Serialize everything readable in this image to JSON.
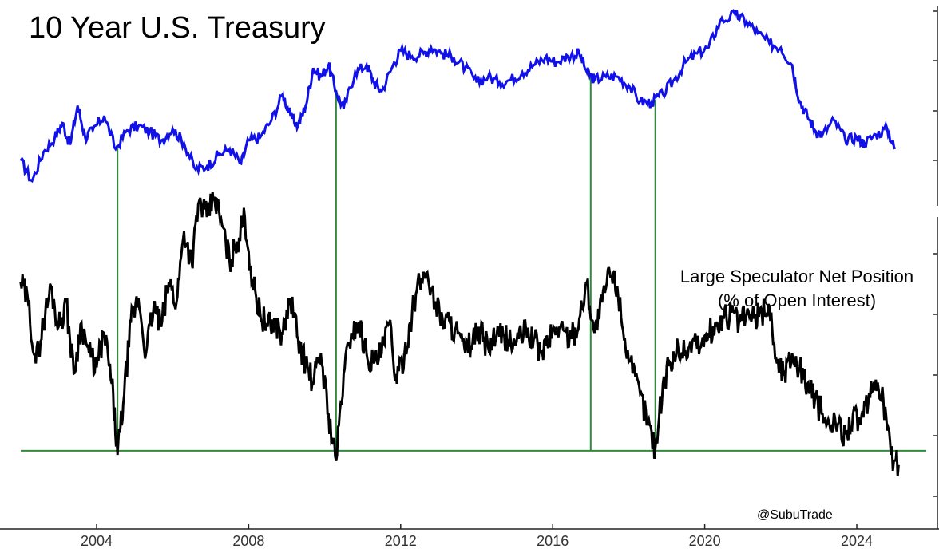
{
  "title": "10 Year U.S. Treasury",
  "annotation": {
    "line1": "Large Speculator Net Position",
    "line2": "(% of Open Interest)"
  },
  "handle": "@SubuTrade",
  "chart_data": {
    "type": "line",
    "x_ticks": [
      "2004",
      "2008",
      "2012",
      "2016",
      "2020",
      "2024"
    ],
    "xlim": [
      2002.0,
      2026.0
    ],
    "grid": false,
    "colors": {
      "price": "#1010e8",
      "position": "#000000",
      "marker": "#2e8b3c"
    },
    "series": [
      {
        "panel": "top",
        "points": [
          [
            2002.0,
            0.24
          ],
          [
            2002.3,
            0.1
          ],
          [
            2002.6,
            0.3
          ],
          [
            2002.9,
            0.4
          ],
          [
            2003.1,
            0.5
          ],
          [
            2003.3,
            0.35
          ],
          [
            2003.5,
            0.62
          ],
          [
            2003.7,
            0.4
          ],
          [
            2003.9,
            0.45
          ],
          [
            2004.2,
            0.55
          ],
          [
            2004.5,
            0.32
          ],
          [
            2004.8,
            0.45
          ],
          [
            2005.1,
            0.48
          ],
          [
            2005.4,
            0.44
          ],
          [
            2005.7,
            0.38
          ],
          [
            2006.0,
            0.46
          ],
          [
            2006.3,
            0.36
          ],
          [
            2006.6,
            0.18
          ],
          [
            2006.9,
            0.2
          ],
          [
            2007.2,
            0.28
          ],
          [
            2007.5,
            0.32
          ],
          [
            2007.8,
            0.22
          ],
          [
            2008.0,
            0.38
          ],
          [
            2008.3,
            0.4
          ],
          [
            2008.6,
            0.52
          ],
          [
            2008.9,
            0.7
          ],
          [
            2009.1,
            0.55
          ],
          [
            2009.3,
            0.48
          ],
          [
            2009.5,
            0.62
          ],
          [
            2009.7,
            0.88
          ],
          [
            2009.9,
            0.82
          ],
          [
            2010.1,
            0.9
          ],
          [
            2010.3,
            0.72
          ],
          [
            2010.5,
            0.6
          ],
          [
            2010.8,
            0.85
          ],
          [
            2011.1,
            0.9
          ],
          [
            2011.3,
            0.78
          ],
          [
            2011.5,
            0.72
          ],
          [
            2011.8,
            0.9
          ],
          [
            2012.0,
            1.0
          ],
          [
            2012.3,
            0.96
          ],
          [
            2012.6,
            0.98
          ],
          [
            2012.8,
            1.02
          ],
          [
            2013.1,
            0.98
          ],
          [
            2013.4,
            0.95
          ],
          [
            2013.7,
            0.88
          ],
          [
            2014.0,
            0.78
          ],
          [
            2014.3,
            0.82
          ],
          [
            2014.6,
            0.78
          ],
          [
            2014.9,
            0.8
          ],
          [
            2015.2,
            0.85
          ],
          [
            2015.5,
            0.9
          ],
          [
            2015.8,
            0.95
          ],
          [
            2016.1,
            0.92
          ],
          [
            2016.4,
            0.96
          ],
          [
            2016.7,
            0.98
          ],
          [
            2016.9,
            0.85
          ],
          [
            2017.1,
            0.8
          ],
          [
            2017.4,
            0.82
          ],
          [
            2017.7,
            0.82
          ],
          [
            2018.0,
            0.76
          ],
          [
            2018.3,
            0.65
          ],
          [
            2018.6,
            0.64
          ],
          [
            2018.9,
            0.7
          ],
          [
            2019.2,
            0.8
          ],
          [
            2019.5,
            0.92
          ],
          [
            2019.8,
            0.98
          ],
          [
            2020.1,
            1.02
          ],
          [
            2020.4,
            1.2
          ],
          [
            2020.8,
            1.25
          ],
          [
            2021.1,
            1.2
          ],
          [
            2021.4,
            1.12
          ],
          [
            2021.7,
            1.05
          ],
          [
            2022.0,
            1.02
          ],
          [
            2022.3,
            0.9
          ],
          [
            2022.5,
            0.65
          ],
          [
            2022.7,
            0.55
          ],
          [
            2022.9,
            0.45
          ],
          [
            2023.1,
            0.42
          ],
          [
            2023.4,
            0.52
          ],
          [
            2023.7,
            0.38
          ],
          [
            2024.0,
            0.4
          ],
          [
            2024.2,
            0.36
          ],
          [
            2024.5,
            0.42
          ],
          [
            2024.8,
            0.46
          ],
          [
            2025.0,
            0.32
          ]
        ]
      },
      {
        "panel": "bottom",
        "points": [
          [
            2002.0,
            0.3
          ],
          [
            2002.2,
            0.2
          ],
          [
            2002.4,
            -0.1
          ],
          [
            2002.6,
            0.1
          ],
          [
            2002.8,
            0.28
          ],
          [
            2003.0,
            0.08
          ],
          [
            2003.2,
            0.2
          ],
          [
            2003.4,
            -0.15
          ],
          [
            2003.6,
            0.1
          ],
          [
            2003.8,
            -0.05
          ],
          [
            2004.0,
            -0.12
          ],
          [
            2004.2,
            0.05
          ],
          [
            2004.4,
            -0.2
          ],
          [
            2004.55,
            -0.55
          ],
          [
            2004.7,
            -0.3
          ],
          [
            2004.9,
            0.1
          ],
          [
            2005.1,
            0.22
          ],
          [
            2005.3,
            -0.05
          ],
          [
            2005.5,
            0.18
          ],
          [
            2005.7,
            0.08
          ],
          [
            2005.9,
            0.3
          ],
          [
            2006.1,
            0.2
          ],
          [
            2006.3,
            0.55
          ],
          [
            2006.5,
            0.4
          ],
          [
            2006.7,
            0.7
          ],
          [
            2006.9,
            0.62
          ],
          [
            2007.1,
            0.72
          ],
          [
            2007.3,
            0.58
          ],
          [
            2007.5,
            0.4
          ],
          [
            2007.7,
            0.5
          ],
          [
            2007.9,
            0.62
          ],
          [
            2008.1,
            0.3
          ],
          [
            2008.3,
            0.15
          ],
          [
            2008.5,
            0.08
          ],
          [
            2008.7,
            0.1
          ],
          [
            2008.9,
            0.04
          ],
          [
            2009.1,
            0.22
          ],
          [
            2009.3,
            0.02
          ],
          [
            2009.5,
            -0.1
          ],
          [
            2009.7,
            -0.2
          ],
          [
            2009.9,
            -0.05
          ],
          [
            2010.1,
            -0.35
          ],
          [
            2010.3,
            -0.58
          ],
          [
            2010.5,
            -0.15
          ],
          [
            2010.7,
            0.05
          ],
          [
            2010.9,
            0.1
          ],
          [
            2011.1,
            -0.05
          ],
          [
            2011.3,
            -0.1
          ],
          [
            2011.5,
            -0.05
          ],
          [
            2011.7,
            0.1
          ],
          [
            2011.9,
            -0.2
          ],
          [
            2012.1,
            -0.05
          ],
          [
            2012.3,
            0.15
          ],
          [
            2012.5,
            0.3
          ],
          [
            2012.7,
            0.35
          ],
          [
            2012.9,
            0.2
          ],
          [
            2013.1,
            0.12
          ],
          [
            2013.3,
            0.1
          ],
          [
            2013.5,
            0.05
          ],
          [
            2013.7,
            -0.05
          ],
          [
            2013.9,
            0.02
          ],
          [
            2014.1,
            0.05
          ],
          [
            2014.3,
            -0.02
          ],
          [
            2014.5,
            0.02
          ],
          [
            2014.7,
            0.04
          ],
          [
            2014.9,
            0.0
          ],
          [
            2015.1,
            0.02
          ],
          [
            2015.3,
            0.06
          ],
          [
            2015.5,
            0.02
          ],
          [
            2015.7,
            -0.05
          ],
          [
            2015.9,
            0.02
          ],
          [
            2016.1,
            0.08
          ],
          [
            2016.3,
            0.06
          ],
          [
            2016.5,
            0.02
          ],
          [
            2016.7,
            0.12
          ],
          [
            2016.9,
            0.3
          ],
          [
            2017.1,
            0.05
          ],
          [
            2017.3,
            0.2
          ],
          [
            2017.5,
            0.35
          ],
          [
            2017.7,
            0.28
          ],
          [
            2017.9,
            0.02
          ],
          [
            2018.1,
            -0.15
          ],
          [
            2018.3,
            -0.25
          ],
          [
            2018.5,
            -0.38
          ],
          [
            2018.7,
            -0.52
          ],
          [
            2018.9,
            -0.2
          ],
          [
            2019.1,
            -0.1
          ],
          [
            2019.3,
            -0.02
          ],
          [
            2019.5,
            -0.05
          ],
          [
            2019.7,
            0.02
          ],
          [
            2019.9,
            -0.02
          ],
          [
            2020.1,
            0.05
          ],
          [
            2020.3,
            0.08
          ],
          [
            2020.5,
            0.12
          ],
          [
            2020.7,
            0.15
          ],
          [
            2020.9,
            0.1
          ],
          [
            2021.1,
            0.14
          ],
          [
            2021.3,
            0.12
          ],
          [
            2021.5,
            0.15
          ],
          [
            2021.7,
            0.18
          ],
          [
            2021.9,
            -0.1
          ],
          [
            2022.1,
            -0.15
          ],
          [
            2022.3,
            -0.05
          ],
          [
            2022.5,
            -0.12
          ],
          [
            2022.7,
            -0.2
          ],
          [
            2022.9,
            -0.28
          ],
          [
            2023.1,
            -0.35
          ],
          [
            2023.3,
            -0.42
          ],
          [
            2023.5,
            -0.4
          ],
          [
            2023.7,
            -0.45
          ],
          [
            2023.9,
            -0.35
          ],
          [
            2024.1,
            -0.4
          ],
          [
            2024.3,
            -0.3
          ],
          [
            2024.5,
            -0.18
          ],
          [
            2024.7,
            -0.28
          ],
          [
            2024.9,
            -0.55
          ],
          [
            2025.1,
            -0.6
          ]
        ]
      }
    ],
    "events": [
      2004.55,
      2010.3,
      2017.0,
      2018.7
    ],
    "threshold": -0.53
  }
}
